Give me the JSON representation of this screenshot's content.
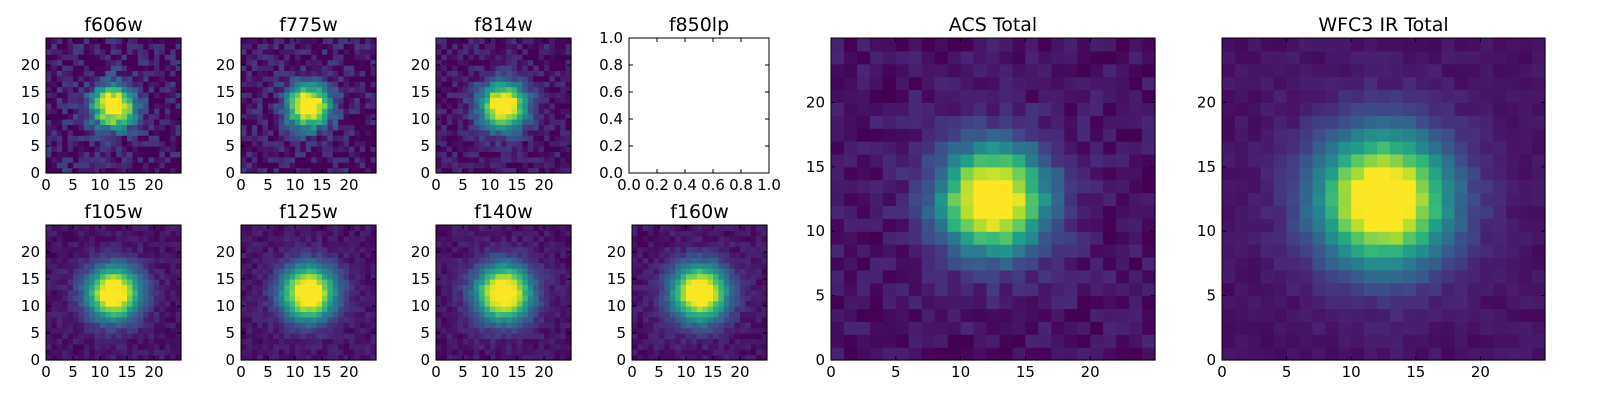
{
  "chart_data": [
    {
      "type": "heatmap",
      "title": "f606w",
      "xlim": [
        0,
        25
      ],
      "ylim": [
        0,
        25
      ],
      "xticks": [
        "0",
        "5",
        "10",
        "15",
        "20"
      ],
      "yticks": [
        "0",
        "5",
        "10",
        "15",
        "20"
      ],
      "grid_size": [
        25,
        25
      ],
      "peak": [
        12.5,
        12.5
      ],
      "sigma": 2.8,
      "noise": 0.28,
      "colormap": "viridis",
      "grid": false
    },
    {
      "type": "heatmap",
      "title": "f775w",
      "xlim": [
        0,
        25
      ],
      "ylim": [
        0,
        25
      ],
      "xticks": [
        "0",
        "5",
        "10",
        "15",
        "20"
      ],
      "yticks": [
        "0",
        "5",
        "10",
        "15",
        "20"
      ],
      "grid_size": [
        25,
        25
      ],
      "peak": [
        12.5,
        12.5
      ],
      "sigma": 2.8,
      "noise": 0.26,
      "colormap": "viridis",
      "grid": false
    },
    {
      "type": "heatmap",
      "title": "f814w",
      "xlim": [
        0,
        25
      ],
      "ylim": [
        0,
        25
      ],
      "xticks": [
        "0",
        "5",
        "10",
        "15",
        "20"
      ],
      "yticks": [
        "0",
        "5",
        "10",
        "15",
        "20"
      ],
      "grid_size": [
        25,
        25
      ],
      "peak": [
        12.5,
        12.5
      ],
      "sigma": 3.0,
      "noise": 0.18,
      "colormap": "viridis",
      "grid": false
    },
    {
      "type": "empty",
      "title": "f850lp",
      "xlim": [
        0.0,
        1.0
      ],
      "ylim": [
        0.0,
        1.0
      ],
      "xticks": [
        "0.0",
        "0.2",
        "0.4",
        "0.6",
        "0.8",
        "1.0"
      ],
      "yticks": [
        "0.0",
        "0.2",
        "0.4",
        "0.6",
        "0.8",
        "1.0"
      ],
      "grid": false
    },
    {
      "type": "heatmap",
      "title": "f105w",
      "xlim": [
        0,
        25
      ],
      "ylim": [
        0,
        25
      ],
      "xticks": [
        "0",
        "5",
        "10",
        "15",
        "20"
      ],
      "yticks": [
        "0",
        "5",
        "10",
        "15",
        "20"
      ],
      "grid_size": [
        25,
        25
      ],
      "peak": [
        12.5,
        12.5
      ],
      "sigma": 3.4,
      "noise": 0.1,
      "colormap": "viridis",
      "grid": false
    },
    {
      "type": "heatmap",
      "title": "f125w",
      "xlim": [
        0,
        25
      ],
      "ylim": [
        0,
        25
      ],
      "xticks": [
        "0",
        "5",
        "10",
        "15",
        "20"
      ],
      "yticks": [
        "0",
        "5",
        "10",
        "15",
        "20"
      ],
      "grid_size": [
        25,
        25
      ],
      "peak": [
        12.5,
        12.5
      ],
      "sigma": 3.5,
      "noise": 0.1,
      "colormap": "viridis",
      "grid": false
    },
    {
      "type": "heatmap",
      "title": "f140w",
      "xlim": [
        0,
        25
      ],
      "ylim": [
        0,
        25
      ],
      "xticks": [
        "0",
        "5",
        "10",
        "15",
        "20"
      ],
      "yticks": [
        "0",
        "5",
        "10",
        "15",
        "20"
      ],
      "grid_size": [
        25,
        25
      ],
      "peak": [
        12.5,
        12.5
      ],
      "sigma": 3.6,
      "noise": 0.1,
      "colormap": "viridis",
      "grid": false
    },
    {
      "type": "heatmap",
      "title": "f160w",
      "xlim": [
        0,
        25
      ],
      "ylim": [
        0,
        25
      ],
      "xticks": [
        "0",
        "5",
        "10",
        "15",
        "20"
      ],
      "yticks": [
        "0",
        "5",
        "10",
        "15",
        "20"
      ],
      "grid_size": [
        25,
        25
      ],
      "peak": [
        12.5,
        12.5
      ],
      "sigma": 3.6,
      "noise": 0.1,
      "colormap": "viridis",
      "grid": false
    },
    {
      "type": "heatmap",
      "title": "ACS Total",
      "xlim": [
        0,
        25
      ],
      "ylim": [
        0,
        25
      ],
      "xticks": [
        "0",
        "5",
        "10",
        "15",
        "20"
      ],
      "yticks": [
        "0",
        "5",
        "10",
        "15",
        "20"
      ],
      "grid_size": [
        25,
        25
      ],
      "peak": [
        12.5,
        12.5
      ],
      "sigma": 2.9,
      "noise": 0.12,
      "colormap": "viridis",
      "grid": false
    },
    {
      "type": "heatmap",
      "title": "WFC3 IR Total",
      "xlim": [
        0,
        25
      ],
      "ylim": [
        0,
        25
      ],
      "xticks": [
        "0",
        "5",
        "10",
        "15",
        "20"
      ],
      "yticks": [
        "0",
        "5",
        "10",
        "15",
        "20"
      ],
      "grid_size": [
        25,
        25
      ],
      "peak": [
        12.5,
        12.5
      ],
      "sigma": 3.6,
      "noise": 0.06,
      "colormap": "viridis",
      "grid": false
    }
  ]
}
